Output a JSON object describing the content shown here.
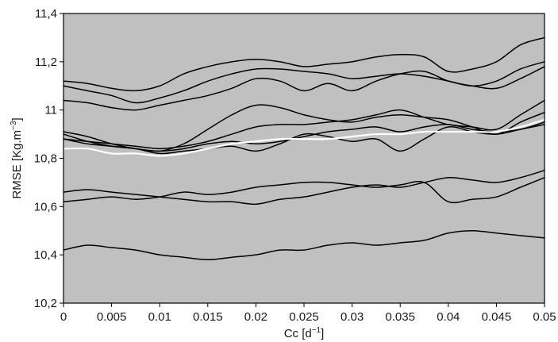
{
  "chart_data": {
    "type": "line",
    "title": "",
    "xlabel": {
      "text": "Cc [d",
      "sup": "−1",
      "after": "]"
    },
    "ylabel": {
      "text": "RMSE [Kg.m",
      "sup": "−3",
      "after": "]"
    },
    "xlim": [
      0,
      0.05
    ],
    "ylim": [
      10.2,
      11.4
    ],
    "x_ticks": [
      0,
      0.005,
      0.01,
      0.015,
      0.02,
      0.025,
      0.03,
      0.035,
      0.04,
      0.045,
      0.05
    ],
    "x_tick_labels": [
      "0",
      "0.005",
      "0.01",
      "0.015",
      "0.02",
      "0.025",
      "0.03",
      "0.035",
      "0.04",
      "0.045",
      "0.05"
    ],
    "y_ticks": [
      10.2,
      10.4,
      10.6,
      10.8,
      11.0,
      11.2,
      11.4
    ],
    "y_tick_labels": [
      "10,2",
      "10,4",
      "10,6",
      "10,8",
      "11",
      "11,2",
      "11,4"
    ],
    "grid": false,
    "legend": "none",
    "colors": {
      "plot_background": "#c0c0c0",
      "series_line": "#000000",
      "highlight_line": "#ffffff"
    },
    "x": [
      0,
      0.0025,
      0.005,
      0.0075,
      0.01,
      0.0125,
      0.015,
      0.0175,
      0.02,
      0.0225,
      0.025,
      0.0275,
      0.03,
      0.0325,
      0.035,
      0.0375,
      0.04,
      0.0425,
      0.045,
      0.0475,
      0.05
    ],
    "series": [
      {
        "color": "#000000",
        "values": [
          11.12,
          11.11,
          11.09,
          11.08,
          11.1,
          11.15,
          11.18,
          11.2,
          11.21,
          11.2,
          11.18,
          11.19,
          11.2,
          11.22,
          11.23,
          11.22,
          11.16,
          11.17,
          11.2,
          11.27,
          11.3
        ]
      },
      {
        "color": "#000000",
        "values": [
          11.1,
          11.08,
          11.06,
          11.03,
          11.05,
          11.08,
          11.12,
          11.15,
          11.17,
          11.17,
          11.16,
          11.15,
          11.13,
          11.14,
          11.15,
          11.14,
          11.12,
          11.1,
          11.12,
          11.17,
          11.2
        ]
      },
      {
        "color": "#000000",
        "values": [
          11.04,
          11.03,
          11.01,
          11.0,
          11.02,
          11.04,
          11.06,
          11.09,
          11.13,
          11.12,
          11.08,
          11.11,
          11.08,
          11.12,
          11.15,
          11.16,
          11.12,
          11.1,
          11.09,
          11.13,
          11.18
        ]
      },
      {
        "color": "#000000",
        "values": [
          10.9,
          10.87,
          10.85,
          10.84,
          10.83,
          10.86,
          10.92,
          10.98,
          11.02,
          11.01,
          10.98,
          10.96,
          10.95,
          10.97,
          10.98,
          10.97,
          10.96,
          10.93,
          10.9,
          10.95,
          10.99
        ]
      },
      {
        "color": "#000000",
        "values": [
          10.88,
          10.87,
          10.86,
          10.85,
          10.84,
          10.85,
          10.87,
          10.9,
          10.93,
          10.94,
          10.94,
          10.95,
          10.96,
          10.98,
          11.0,
          10.97,
          10.94,
          10.93,
          10.92,
          10.98,
          11.04
        ]
      },
      {
        "color": "#000000",
        "values": [
          10.91,
          10.89,
          10.86,
          10.84,
          10.83,
          10.84,
          10.86,
          10.87,
          10.86,
          10.87,
          10.89,
          10.91,
          10.92,
          10.93,
          10.91,
          10.93,
          10.94,
          10.92,
          10.91,
          10.92,
          10.95
        ]
      },
      {
        "color": "#000000",
        "values": [
          10.88,
          10.86,
          10.85,
          10.84,
          10.82,
          10.83,
          10.84,
          10.85,
          10.83,
          10.86,
          10.9,
          10.89,
          10.87,
          10.88,
          10.83,
          10.88,
          10.93,
          10.91,
          10.9,
          10.92,
          10.94
        ]
      },
      {
        "color": "#000000",
        "values": [
          10.66,
          10.67,
          10.66,
          10.65,
          10.64,
          10.63,
          10.62,
          10.62,
          10.61,
          10.63,
          10.64,
          10.66,
          10.68,
          10.69,
          10.68,
          10.7,
          10.72,
          10.71,
          10.7,
          10.72,
          10.75
        ]
      },
      {
        "color": "#000000",
        "values": [
          10.62,
          10.63,
          10.64,
          10.63,
          10.64,
          10.66,
          10.65,
          10.66,
          10.68,
          10.69,
          10.7,
          10.7,
          10.69,
          10.68,
          10.69,
          10.7,
          10.62,
          10.63,
          10.64,
          10.68,
          10.72
        ]
      },
      {
        "color": "#000000",
        "values": [
          10.42,
          10.44,
          10.43,
          10.42,
          10.4,
          10.39,
          10.38,
          10.39,
          10.4,
          10.42,
          10.42,
          10.44,
          10.45,
          10.44,
          10.45,
          10.46,
          10.49,
          10.5,
          10.49,
          10.48,
          10.47
        ]
      },
      {
        "color": "#ffffff",
        "values": [
          10.84,
          10.84,
          10.82,
          10.82,
          10.81,
          10.82,
          10.84,
          10.86,
          10.87,
          10.88,
          10.88,
          10.88,
          10.89,
          10.9,
          10.9,
          10.91,
          10.91,
          10.91,
          10.91,
          10.93,
          10.96
        ]
      }
    ]
  }
}
